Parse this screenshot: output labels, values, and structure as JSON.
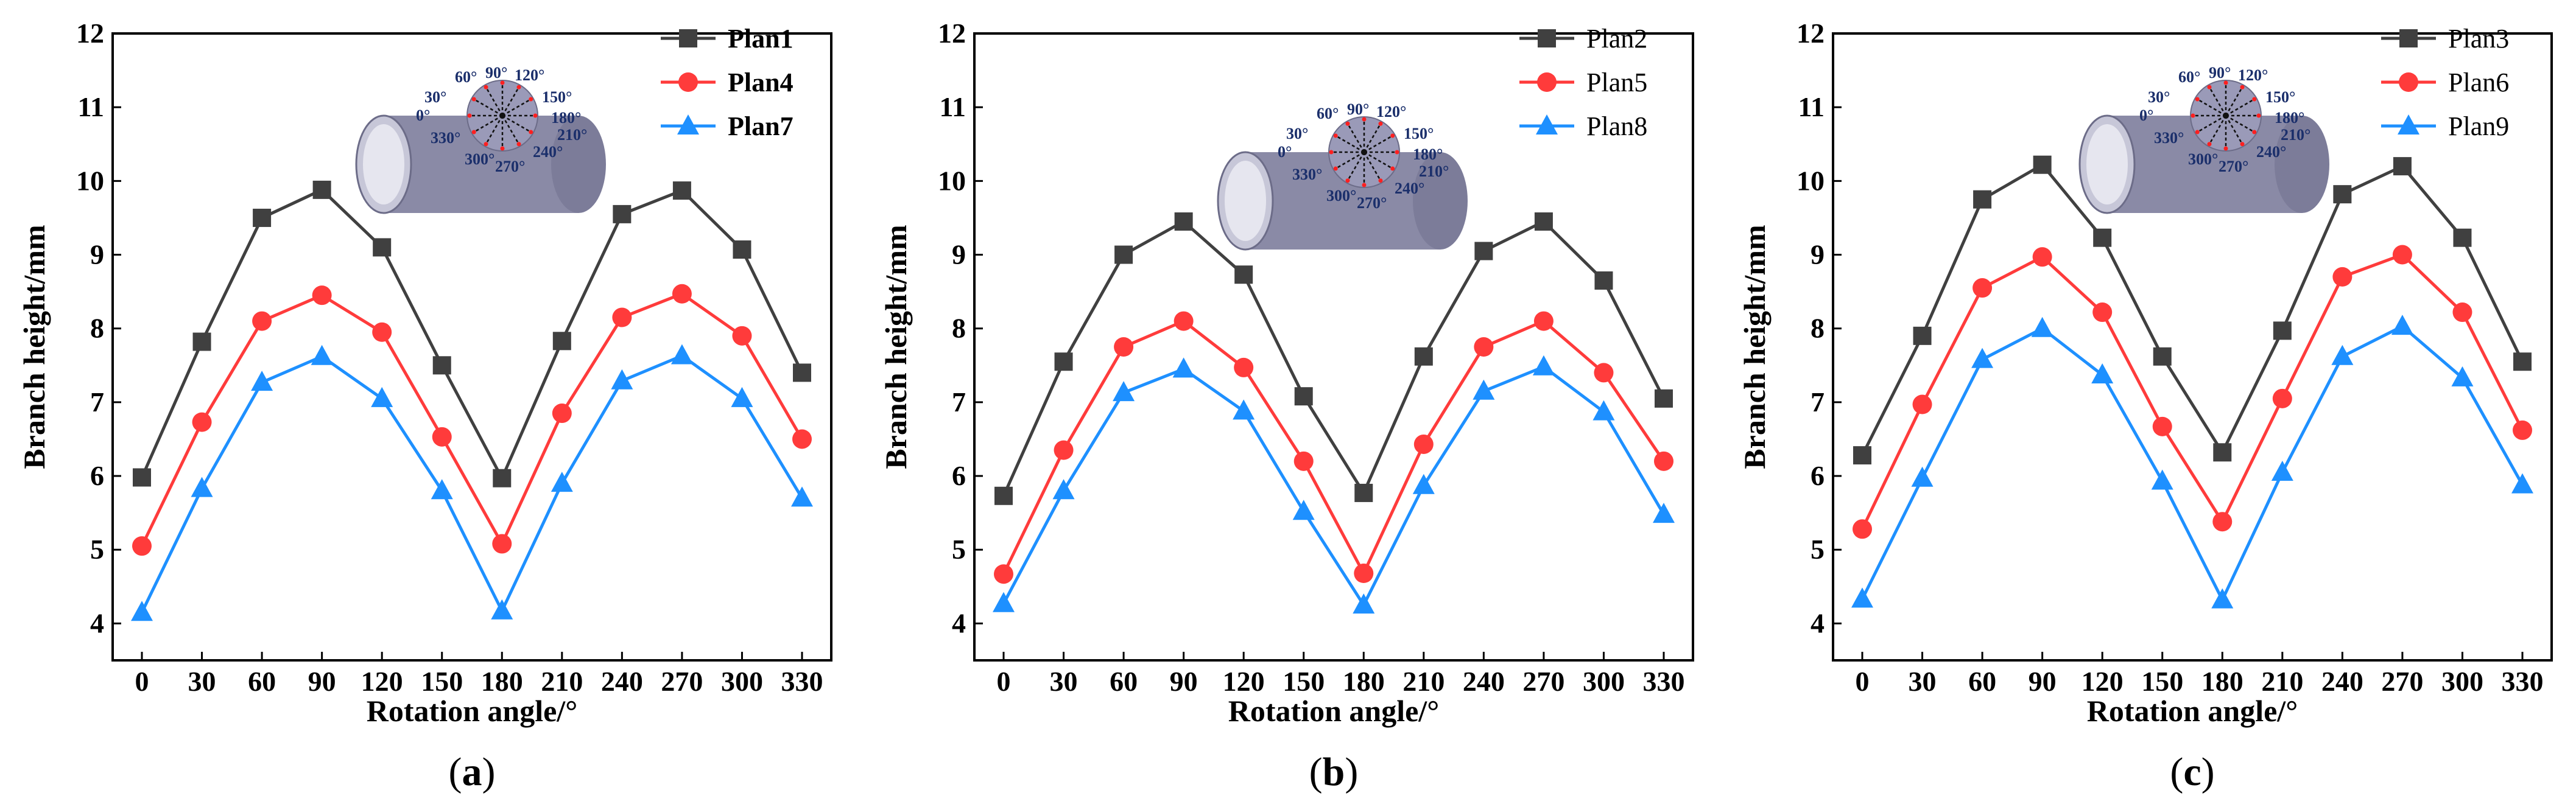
{
  "chart_data": [
    {
      "type": "line",
      "panel_label": "a",
      "xlabel": "Rotation angle/°",
      "ylabel": "Branch height/mm",
      "x": [
        0,
        30,
        60,
        90,
        120,
        150,
        180,
        210,
        240,
        270,
        300,
        330
      ],
      "ylim": [
        3.5,
        12
      ],
      "yticks": [
        4,
        5,
        6,
        7,
        8,
        9,
        10,
        11,
        12
      ],
      "legend_position": "top-right",
      "legend_bold": true,
      "series": [
        {
          "name": "Plan1",
          "color": "#404040",
          "marker": "square",
          "values": [
            5.98,
            7.82,
            9.5,
            9.88,
            9.1,
            7.5,
            5.97,
            7.83,
            9.55,
            9.87,
            9.07,
            7.4
          ]
        },
        {
          "name": "Plan4",
          "color": "#ff3b3b",
          "marker": "circle",
          "values": [
            5.05,
            6.73,
            8.1,
            8.45,
            7.95,
            6.53,
            5.08,
            6.85,
            8.15,
            8.47,
            7.9,
            6.5
          ]
        },
        {
          "name": "Plan7",
          "color": "#1e90ff",
          "marker": "triangle",
          "values": [
            4.15,
            5.83,
            7.27,
            7.62,
            7.05,
            5.8,
            4.17,
            5.9,
            7.29,
            7.63,
            7.05,
            5.7
          ]
        }
      ]
    },
    {
      "type": "line",
      "panel_label": "b",
      "xlabel": "Rotation angle/°",
      "ylabel": "Branch height/mm",
      "x": [
        0,
        30,
        60,
        90,
        120,
        150,
        180,
        210,
        240,
        270,
        300,
        330
      ],
      "ylim": [
        3.5,
        12
      ],
      "yticks": [
        4,
        5,
        6,
        7,
        8,
        9,
        10,
        11,
        12
      ],
      "legend_position": "top-right",
      "legend_bold": false,
      "series": [
        {
          "name": "Plan2",
          "color": "#404040",
          "marker": "square",
          "values": [
            5.73,
            7.55,
            9.0,
            9.45,
            8.73,
            7.08,
            5.77,
            7.62,
            9.05,
            9.45,
            8.65,
            7.05
          ]
        },
        {
          "name": "Plan5",
          "color": "#ff3b3b",
          "marker": "circle",
          "values": [
            4.67,
            6.35,
            7.75,
            8.1,
            7.47,
            6.2,
            4.68,
            6.43,
            7.75,
            8.1,
            7.4,
            6.2
          ]
        },
        {
          "name": "Plan8",
          "color": "#1e90ff",
          "marker": "triangle",
          "values": [
            4.27,
            5.8,
            7.13,
            7.45,
            6.88,
            5.52,
            4.25,
            5.87,
            7.15,
            7.48,
            6.87,
            5.48
          ]
        }
      ]
    },
    {
      "type": "line",
      "panel_label": "c",
      "xlabel": "Rotation angle/°",
      "ylabel": "Branch height/mm",
      "x": [
        0,
        30,
        60,
        90,
        120,
        150,
        180,
        210,
        240,
        270,
        300,
        330
      ],
      "ylim": [
        3.5,
        12
      ],
      "yticks": [
        4,
        5,
        6,
        7,
        8,
        9,
        10,
        11,
        12
      ],
      "legend_position": "top-right",
      "legend_bold": false,
      "series": [
        {
          "name": "Plan3",
          "color": "#404040",
          "marker": "square",
          "values": [
            6.28,
            7.9,
            9.75,
            10.22,
            9.23,
            7.62,
            6.32,
            7.97,
            9.82,
            10.2,
            9.23,
            7.55
          ]
        },
        {
          "name": "Plan6",
          "color": "#ff3b3b",
          "marker": "circle",
          "values": [
            5.28,
            6.97,
            8.55,
            8.97,
            8.22,
            6.67,
            5.38,
            7.05,
            8.7,
            9.0,
            8.22,
            6.62
          ]
        },
        {
          "name": "Plan9",
          "color": "#1e90ff",
          "marker": "triangle",
          "values": [
            4.33,
            5.97,
            7.58,
            8.0,
            7.37,
            5.93,
            4.32,
            6.05,
            7.62,
            8.03,
            7.33,
            5.88
          ]
        }
      ]
    }
  ],
  "inset_angle_labels": [
    "60°",
    "90°",
    "120°",
    "30°",
    "150°",
    "0°",
    "180°",
    "330°",
    "210°",
    "300°",
    "240°",
    "270°"
  ]
}
